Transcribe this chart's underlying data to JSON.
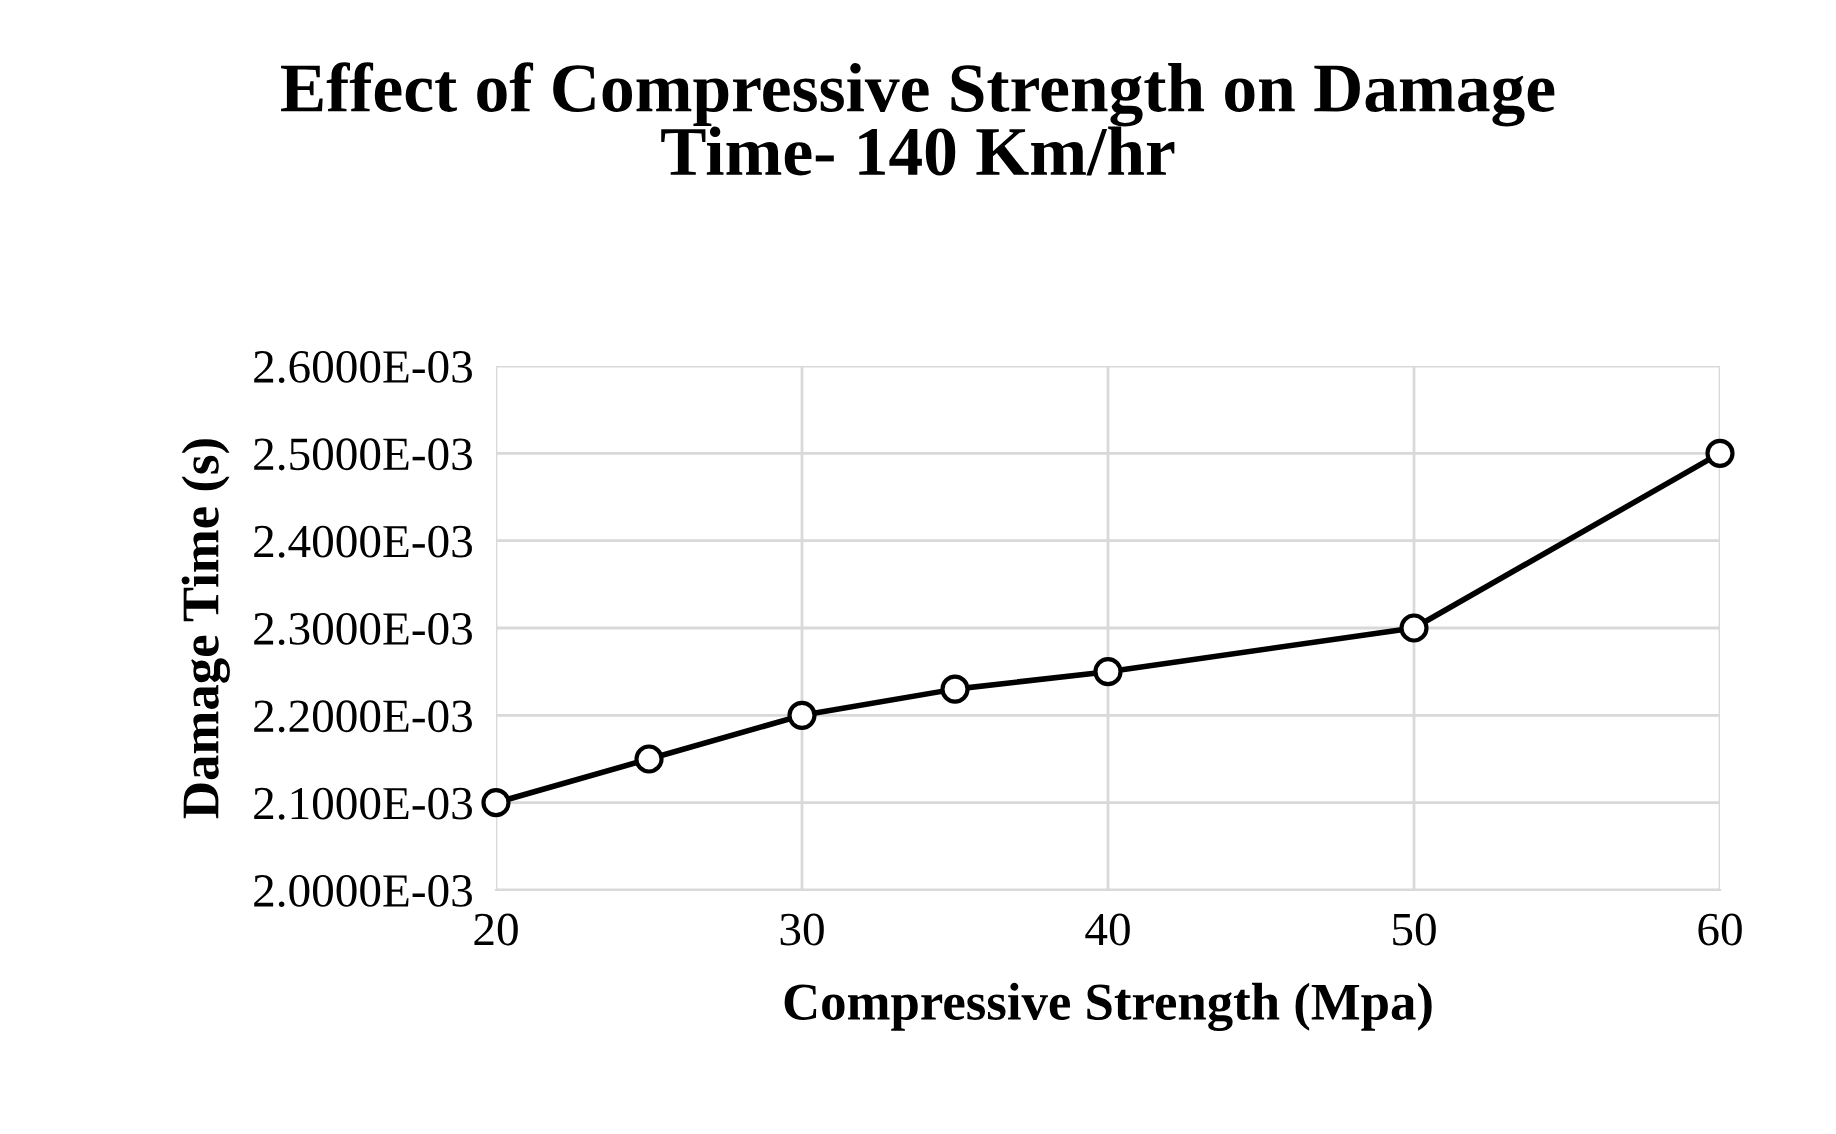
{
  "chart_data": {
    "type": "line",
    "title": "Effect of Compressive Strength on Damage\nTime- 140 Km/hr",
    "xlabel": "Compressive Strength (Mpa)",
    "ylabel": "Damage Time (s)",
    "x": [
      20,
      25,
      30,
      35,
      40,
      50,
      60
    ],
    "series": [
      {
        "color": "#000000",
        "values": [
          0.0021,
          0.00215,
          0.0022,
          0.00223,
          0.00225,
          0.0023,
          0.0025
        ]
      }
    ],
    "xlim": [
      20,
      60
    ],
    "xticks": [
      20,
      30,
      40,
      50,
      60
    ],
    "ylim": [
      0.002,
      0.0026
    ],
    "yticks": [
      {
        "value": 0.002,
        "label": "2.0000E-03"
      },
      {
        "value": 0.0021,
        "label": "2.1000E-03"
      },
      {
        "value": 0.0022,
        "label": "2.2000E-03"
      },
      {
        "value": 0.0023,
        "label": "2.3000E-03"
      },
      {
        "value": 0.0024,
        "label": "2.4000E-03"
      },
      {
        "value": 0.0025,
        "label": "2.5000E-03"
      },
      {
        "value": 0.0026,
        "label": "2.6000E-03"
      }
    ],
    "grid": true,
    "marker": "circle",
    "line_style": "solid",
    "legend": false
  }
}
